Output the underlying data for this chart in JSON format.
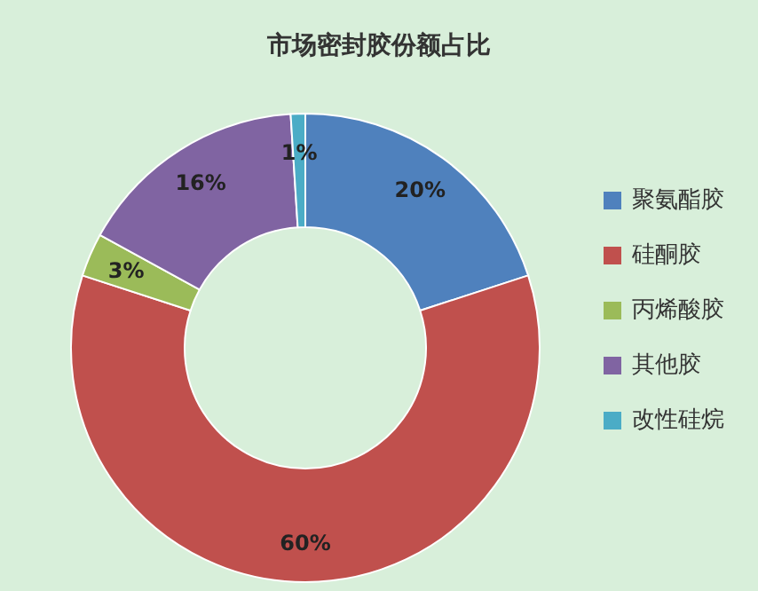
{
  "chart_data": {
    "type": "donut",
    "title": "市场密封胶份额占比",
    "categories": [
      "聚氨酯胶",
      "硅酮胶",
      "丙烯酸胶",
      "其他胶",
      "改性硅烷"
    ],
    "values": [
      20,
      60,
      3,
      16,
      1
    ],
    "colors": [
      "#4f81bd",
      "#c0504d",
      "#9bbb59",
      "#8064a2",
      "#4bacc6"
    ],
    "value_labels": [
      "20%",
      "60%",
      "3%",
      "16%",
      "1%"
    ],
    "legend": "right"
  }
}
